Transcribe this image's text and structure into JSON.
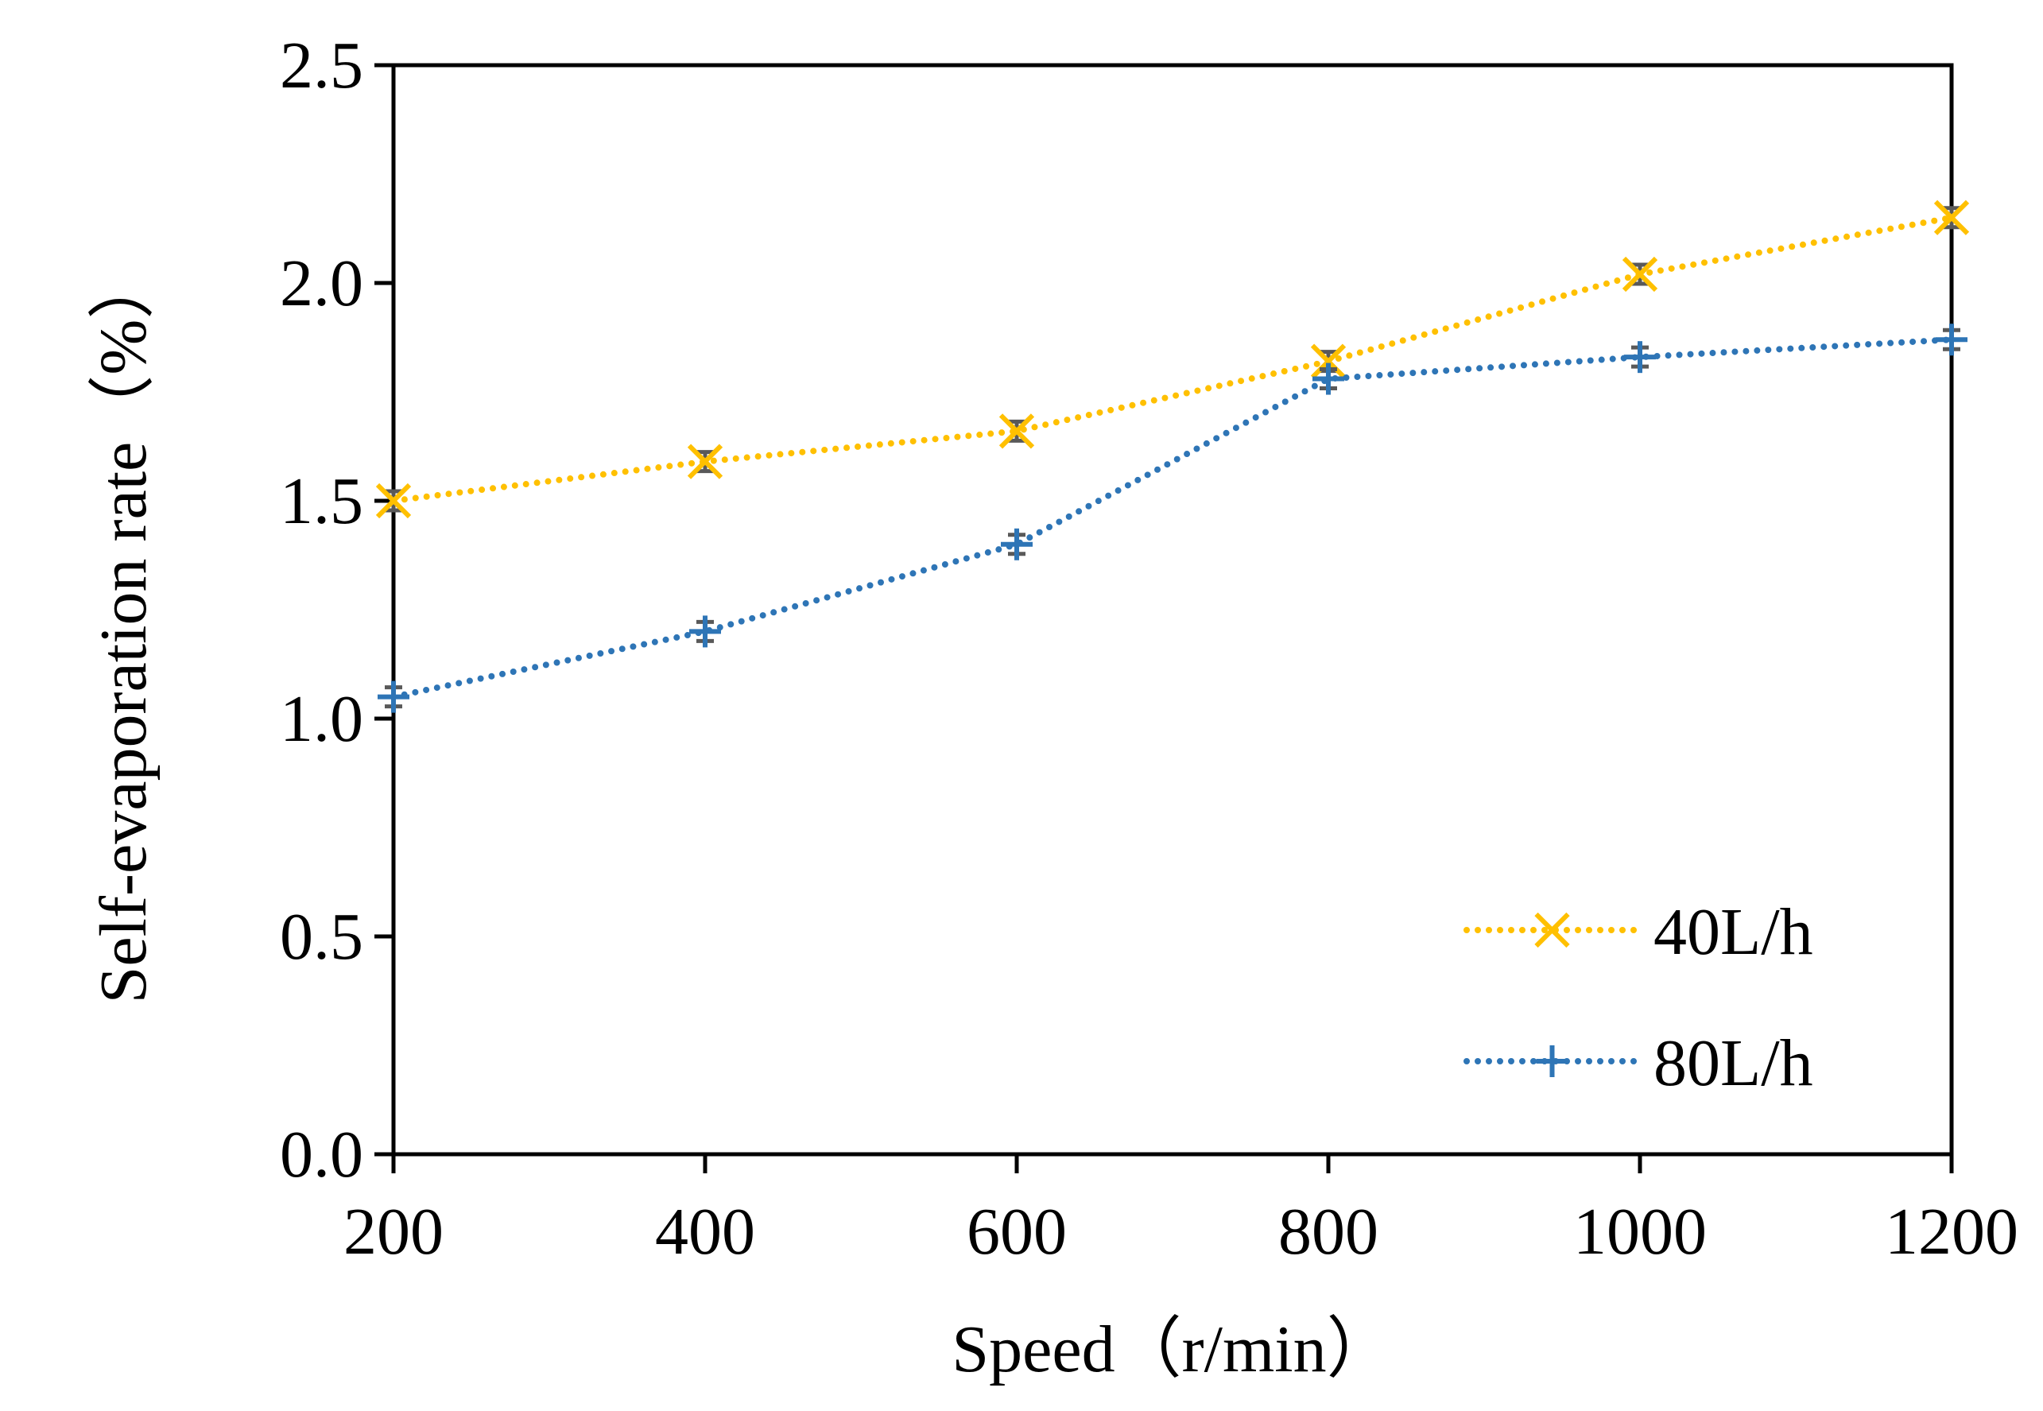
{
  "chart_data": {
    "type": "line",
    "title": "",
    "xlabel": "Speed（r/min）",
    "ylabel": "Self-evaporation rate（%）",
    "x": [
      200,
      400,
      600,
      800,
      1000,
      1200
    ],
    "x_tick_labels": [
      "200",
      "400",
      "600",
      "800",
      "1000",
      "1200"
    ],
    "xlim": [
      200,
      1200
    ],
    "ylim": [
      0,
      2.5
    ],
    "y_ticks": [
      0.0,
      0.5,
      1.0,
      1.5,
      2.0,
      2.5
    ],
    "y_tick_labels": [
      "0.0",
      "0.5",
      "1.0",
      "1.5",
      "2.0",
      "2.5"
    ],
    "grid": false,
    "legend_position": "bottom-right",
    "series": [
      {
        "name": "40L/h",
        "values": [
          1.5,
          1.59,
          1.66,
          1.82,
          2.02,
          2.15
        ],
        "marker": "x",
        "line_style": "dotted",
        "color": "#FFC000"
      },
      {
        "name": "80L/h",
        "values": [
          1.05,
          1.2,
          1.4,
          1.78,
          1.83,
          1.87
        ],
        "marker": "plus",
        "line_style": "dotted",
        "color": "#2E75B6"
      }
    ]
  }
}
